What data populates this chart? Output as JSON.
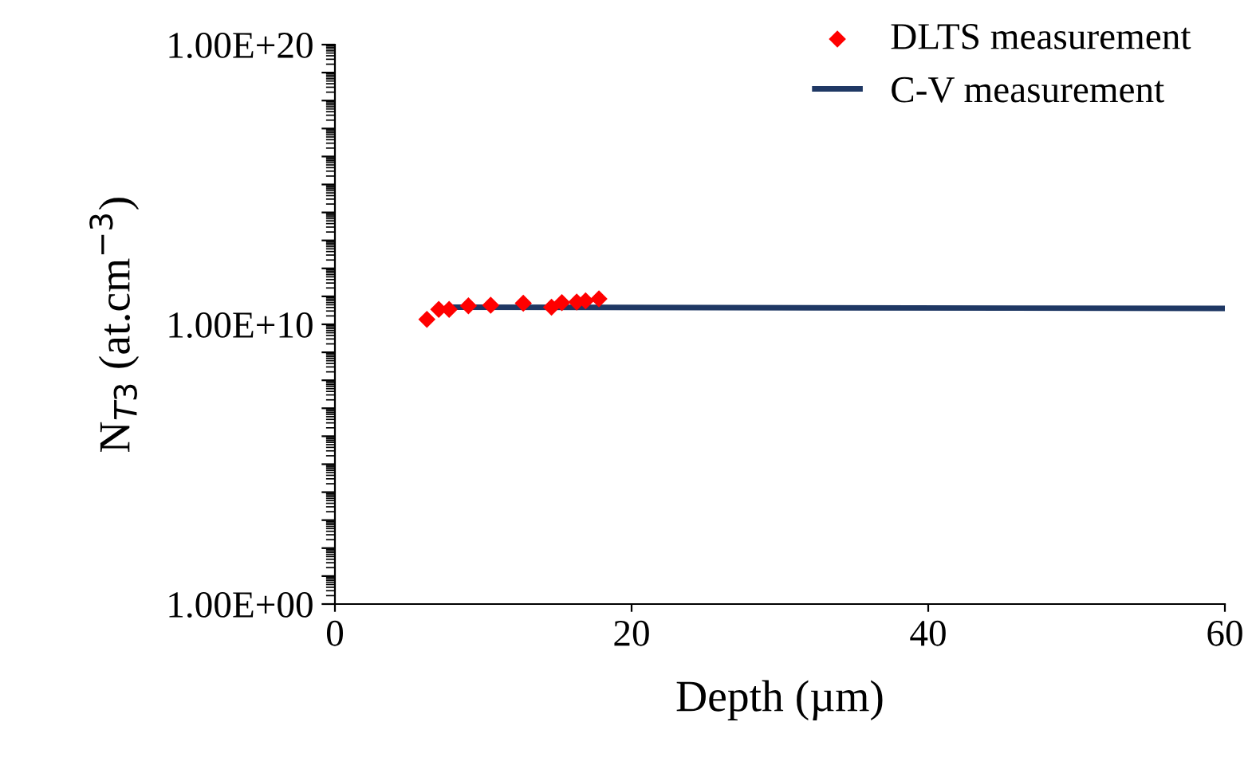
{
  "chart_data": {
    "type": "line",
    "xlabel": "Depth (µm)",
    "ylabel": "N$_{T3}$ (at.cm$^{−3}$)",
    "log": "y",
    "xlim": [
      0,
      60
    ],
    "xticks": [
      0,
      20,
      40,
      60
    ],
    "ylim": [
      1,
      1e+20
    ],
    "yticks": [
      {
        "value": 1,
        "label": "1.00E+00"
      },
      {
        "value": 10,
        "label": null
      },
      {
        "value": 100,
        "label": null
      },
      {
        "value": 1000,
        "label": null
      },
      {
        "value": 10000,
        "label": null
      },
      {
        "value": 100000,
        "label": null
      },
      {
        "value": 1000000,
        "label": null
      },
      {
        "value": 10000000,
        "label": null
      },
      {
        "value": 100000000,
        "label": null
      },
      {
        "value": 1000000000,
        "label": null
      },
      {
        "value": 10000000000,
        "label": "1.00E+10"
      },
      {
        "value": 100000000000.0,
        "label": null
      },
      {
        "value": 1000000000000.0,
        "label": null
      },
      {
        "value": 10000000000000.0,
        "label": null
      },
      {
        "value": 100000000000000.0,
        "label": null
      },
      {
        "value": 1000000000000000.0,
        "label": null
      },
      {
        "value": 1e+16,
        "label": null
      },
      {
        "value": 1e+17,
        "label": null
      },
      {
        "value": 1e+18,
        "label": null
      },
      {
        "value": 1e+19,
        "label": null
      },
      {
        "value": 1e+20,
        "label": "1.00E+20"
      }
    ],
    "grid": false,
    "legend": "top right",
    "series": [
      {
        "name": "DLTS measurement",
        "type": "scatter",
        "marker": "diamond",
        "color": "#ff0000",
        "x": [
          6.2,
          7.0,
          7.7,
          9.0,
          10.5,
          12.7,
          14.6,
          15.3,
          16.3,
          16.9,
          17.8
        ],
        "values": [
          15000000000.0,
          34000000000.0,
          34000000000.0,
          46000000000.0,
          48000000000.0,
          57000000000.0,
          41000000000.0,
          60000000000.0,
          63000000000.0,
          69000000000.0,
          82000000000.0
        ]
      },
      {
        "name": "C-V measurement",
        "marker": "none",
        "line_style": "solid",
        "color": "#1f3864",
        "x": [
          7.7,
          60
        ],
        "values": [
          41000000000.0,
          37000000000.0
        ]
      }
    ]
  }
}
